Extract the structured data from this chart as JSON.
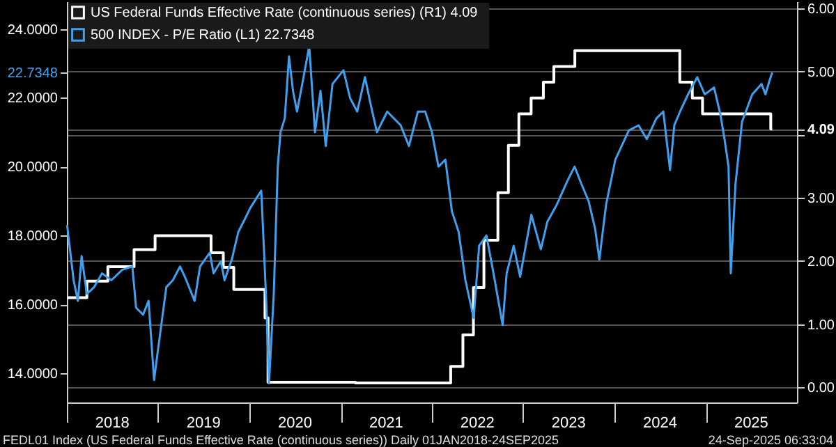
{
  "chart_data": {
    "type": "line",
    "legend": "top left",
    "grid": "y",
    "xlim": [
      "2018-01-01",
      "2026-01-01"
    ],
    "xticks": [
      {
        "value": "2018-01-01",
        "label": null
      },
      {
        "value": "2018-07-02",
        "label": "2018"
      },
      {
        "value": "2019-01-01",
        "label": null
      },
      {
        "value": "2019-07-02",
        "label": "2019"
      },
      {
        "value": "2020-01-01",
        "label": null
      },
      {
        "value": "2020-07-02",
        "label": "2020"
      },
      {
        "value": "2021-01-01",
        "label": null
      },
      {
        "value": "2021-07-02",
        "label": "2021"
      },
      {
        "value": "2022-01-01",
        "label": null
      },
      {
        "value": "2022-07-02",
        "label": "2022"
      },
      {
        "value": "2023-01-01",
        "label": null
      },
      {
        "value": "2023-07-02",
        "label": "2023"
      },
      {
        "value": "2024-01-01",
        "label": null
      },
      {
        "value": "2024-07-02",
        "label": "2024"
      },
      {
        "value": "2025-01-01",
        "label": null
      },
      {
        "value": "2025-07-02",
        "label": "2025"
      }
    ],
    "ylim": [
      13.15,
      24.8
    ],
    "yticks": [
      {
        "value": 14,
        "label": "14.0000"
      },
      {
        "value": 16,
        "label": "16.0000"
      },
      {
        "value": 18,
        "label": "18.0000"
      },
      {
        "value": 20,
        "label": "20.0000"
      },
      {
        "value": 22,
        "label": "22.0000"
      },
      {
        "value": 22.7348,
        "label": "22.7348"
      },
      {
        "value": 24,
        "label": "24.0000"
      }
    ],
    "y2lim": [
      -0.24,
      6.11
    ],
    "y2ticks": [
      {
        "value": 0,
        "label": "0.00"
      },
      {
        "value": 1,
        "label": "1.00"
      },
      {
        "value": 2,
        "label": "2.00"
      },
      {
        "value": 3,
        "label": "3.00"
      },
      {
        "value": 4,
        "label": null
      },
      {
        "value": 4.09,
        "label": "4.09"
      },
      {
        "value": 5,
        "label": "5.00"
      },
      {
        "value": 6,
        "label": "6.00"
      }
    ],
    "series": [
      {
        "name": "US Federal Funds Effective Rate (continuous series)  (R1)  4.09",
        "type": "step",
        "axis": "y2",
        "color": "#ffffff",
        "x": [
          "2018-01-01",
          "2018-03-22",
          "2018-06-14",
          "2018-09-27",
          "2018-12-20",
          "2019-08-01",
          "2019-09-19",
          "2019-10-31",
          "2020-03-04",
          "2020-03-16",
          "2021-03-01",
          "2022-03-17",
          "2022-05-05",
          "2022-06-16",
          "2022-07-28",
          "2022-09-22",
          "2022-11-03",
          "2022-12-15",
          "2023-02-02",
          "2023-03-23",
          "2023-05-04",
          "2023-07-27",
          "2024-09-19",
          "2024-11-08",
          "2024-12-19",
          "2025-09-18",
          "2025-09-24"
        ],
        "values": [
          1.42,
          1.68,
          1.91,
          2.18,
          2.4,
          2.13,
          1.9,
          1.55,
          1.1,
          0.08,
          0.07,
          0.33,
          0.83,
          1.58,
          2.33,
          3.08,
          3.83,
          4.33,
          4.58,
          4.83,
          5.08,
          5.33,
          4.83,
          4.58,
          4.33,
          4.09,
          4.09
        ]
      },
      {
        "name": "500 INDEX - P/E Ratio (L1)  22.7348",
        "color": "#3fa0f0",
        "x": [
          "2018-01-02",
          "2018-01-28",
          "2018-02-14",
          "2018-03-01",
          "2018-03-22",
          "2018-04-20",
          "2018-05-22",
          "2018-06-28",
          "2018-08-10",
          "2018-09-20",
          "2018-10-05",
          "2018-11-02",
          "2018-11-24",
          "2018-12-16",
          "2019-01-01",
          "2019-02-03",
          "2019-03-01",
          "2019-03-30",
          "2019-04-24",
          "2019-05-27",
          "2019-06-18",
          "2019-07-27",
          "2019-08-11",
          "2019-09-09",
          "2019-09-24",
          "2019-10-23",
          "2019-11-18",
          "2019-12-16",
          "2020-01-05",
          "2020-02-18",
          "2020-02-28",
          "2020-03-10",
          "2020-03-20",
          "2020-04-08",
          "2020-04-24",
          "2020-05-05",
          "2020-05-22",
          "2020-06-08",
          "2020-06-24",
          "2020-07-10",
          "2020-07-31",
          "2020-08-28",
          "2020-09-20",
          "2020-10-12",
          "2020-11-02",
          "2020-11-29",
          "2021-01-12",
          "2021-02-07",
          "2021-03-08",
          "2021-04-08",
          "2021-05-01",
          "2021-05-26",
          "2021-07-06",
          "2021-08-29",
          "2021-10-01",
          "2021-11-06",
          "2021-12-05",
          "2022-01-01",
          "2022-01-27",
          "2022-02-24",
          "2022-03-22",
          "2022-04-18",
          "2022-05-15",
          "2022-06-17",
          "2022-07-09",
          "2022-08-07",
          "2022-09-02",
          "2022-10-11",
          "2022-10-27",
          "2022-11-24",
          "2022-12-20",
          "2023-02-03",
          "2023-03-13",
          "2023-04-08",
          "2023-05-16",
          "2023-06-28",
          "2023-07-26",
          "2023-08-22",
          "2023-09-20",
          "2023-10-16",
          "2023-11-02",
          "2023-11-29",
          "2024-01-05",
          "2024-02-28",
          "2024-04-07",
          "2024-05-10",
          "2024-06-17",
          "2024-07-15",
          "2024-08-11",
          "2024-08-28",
          "2024-09-20",
          "2024-10-22",
          "2024-11-28",
          "2024-12-28",
          "2025-02-03",
          "2025-03-01",
          "2025-03-17",
          "2025-04-02",
          "2025-04-11",
          "2025-04-30",
          "2025-05-26",
          "2025-07-06",
          "2025-08-12",
          "2025-08-28",
          "2025-09-13",
          "2025-09-24"
        ],
        "values": [
          18.3,
          16.7,
          16.1,
          17.4,
          16.3,
          16.5,
          16.9,
          16.7,
          17.0,
          17.1,
          15.9,
          15.7,
          16.1,
          13.8,
          14.7,
          16.5,
          16.7,
          17.1,
          16.7,
          16.1,
          17.1,
          17.5,
          16.9,
          17.25,
          16.7,
          17.3,
          18.1,
          18.5,
          18.8,
          19.3,
          17.7,
          15.9,
          13.7,
          16.3,
          20.0,
          21.0,
          21.4,
          23.2,
          22.2,
          21.6,
          22.4,
          23.5,
          21.0,
          22.2,
          20.6,
          22.4,
          22.8,
          22.0,
          21.6,
          22.6,
          21.8,
          21.0,
          21.6,
          21.2,
          20.6,
          21.6,
          21.6,
          21.0,
          20.0,
          20.2,
          18.7,
          18.1,
          16.7,
          15.6,
          17.7,
          18.0,
          17.0,
          15.4,
          16.9,
          17.7,
          16.8,
          18.6,
          17.6,
          18.4,
          18.9,
          19.6,
          20.0,
          19.5,
          19.0,
          18.2,
          17.3,
          18.9,
          20.2,
          21.05,
          21.2,
          20.8,
          21.4,
          21.6,
          19.9,
          21.2,
          21.6,
          22.1,
          22.6,
          22.1,
          22.3,
          21.5,
          20.8,
          20.0,
          16.9,
          19.5,
          21.3,
          22.1,
          22.4,
          22.1,
          22.5,
          22.7348
        ]
      }
    ],
    "annotations": [
      "FEDL01 Index (US Federal Funds Effective Rate (continuous series))  Daily 01JAN2018-24SEP2025",
      "24-Sep-2025 06:33:04"
    ]
  }
}
